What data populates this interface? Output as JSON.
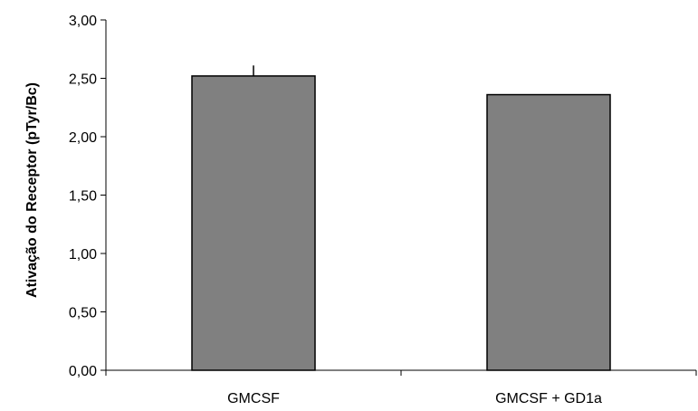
{
  "chart_data": {
    "type": "bar",
    "title": "",
    "xlabel": "",
    "ylabel": "Ativação do Receptor (pTyr/Bc)",
    "categories": [
      "GMCSF",
      "GMCSF + GD1a"
    ],
    "values": [
      2.52,
      2.36
    ],
    "error_bars": [
      0.09,
      0.0
    ],
    "ylim": [
      0,
      3
    ],
    "yticks": [
      "0,00",
      "0,50",
      "1,00",
      "1,50",
      "2,00",
      "2,50",
      "3,00"
    ],
    "ytick_values": [
      0,
      0.5,
      1,
      1.5,
      2,
      2.5,
      3
    ],
    "grid": false,
    "legend": "none",
    "bar_color": "#808080"
  }
}
